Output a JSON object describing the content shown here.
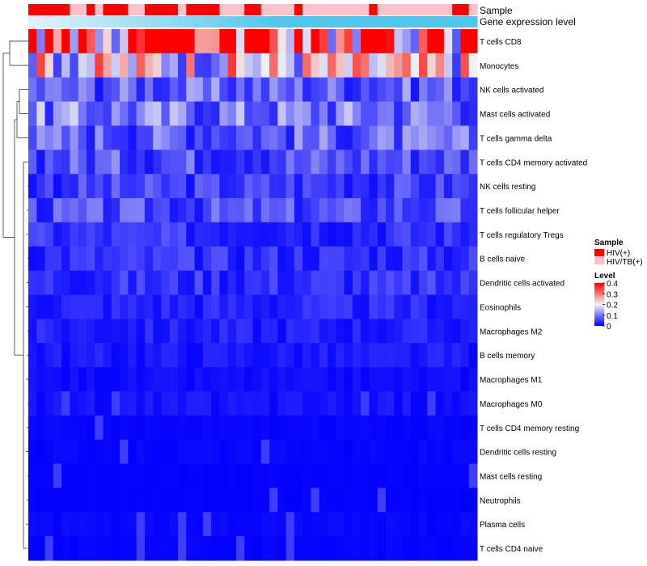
{
  "chart_data": {
    "type": "heatmap",
    "annotations": {
      "sample_label": "Sample",
      "expression_label": "Gene expression level"
    },
    "rows": [
      "T cells CD8",
      "Monocytes",
      "NK cells activated",
      "Mast cells activated",
      "T cells gamma delta",
      "T cells CD4 memory activated",
      "NK cells resting",
      "T cells follicular helper",
      "T cells regulatory  Tregs",
      "B cells naive",
      "Dendritic cells activated",
      "Eosinophils",
      "Macrophages M2",
      "B cells memory",
      "Macrophages M1",
      "Macrophages M0",
      "T cells CD4 memory resting",
      "Dendritic cells resting",
      "Mast cells resting",
      "Neutrophils",
      "Plasma cells",
      "T cells CD4 naive"
    ],
    "row_base_levels": [
      0.33,
      0.2,
      0.08,
      0.1,
      0.08,
      0.07,
      0.05,
      0.06,
      0.04,
      0.04,
      0.04,
      0.03,
      0.025,
      0.02,
      0.01,
      0.015,
      0.005,
      0.005,
      0.003,
      0.002,
      0.006,
      0.004
    ],
    "sample_groups": [
      "HIV(+)",
      "HIV(+)",
      "HIV(+)",
      "HIV(+)",
      "HIV(+)",
      "HIV/TB(+)",
      "HIV/TB(+)",
      "HIV(+)",
      "HIV/TB(+)",
      "HIV(+)",
      "HIV(+)",
      "HIV(+)",
      "HIV/TB(+)",
      "HIV/TB(+)",
      "HIV(+)",
      "HIV(+)",
      "HIV(+)",
      "HIV(+)",
      "HIV/TB(+)",
      "HIV(+)",
      "HIV(+)",
      "HIV(+)",
      "HIV(+)",
      "HIV/TB(+)",
      "HIV/TB(+)",
      "HIV/TB(+)",
      "HIV(+)",
      "HIV(+)",
      "HIV/TB(+)",
      "HIV/TB(+)",
      "HIV/TB(+)",
      "HIV/TB(+)",
      "HIV(+)",
      "HIV/TB(+)",
      "HIV/TB(+)",
      "HIV/TB(+)",
      "HIV/TB(+)",
      "HIV/TB(+)",
      "HIV/TB(+)",
      "HIV/TB(+)",
      "HIV/TB(+)",
      "HIV(+)",
      "HIV/TB(+)",
      "HIV/TB(+)",
      "HIV/TB(+)",
      "HIV/TB(+)",
      "HIV/TB(+)",
      "HIV/TB(+)",
      "HIV/TB(+)",
      "HIV/TB(+)",
      "HIV/TB(+)",
      "HIV(+)",
      "HIV(+)",
      "HIV/TB(+)"
    ],
    "legend": {
      "sample_title": "Sample",
      "sample_entries": [
        {
          "label": "HIV(+)",
          "color": "#ff0000"
        },
        {
          "label": "HIV/TB(+)",
          "color": "#ffc0cb"
        }
      ],
      "level_title": "Level",
      "level_ticks": [
        "0.4",
        "0.3",
        "0.2",
        "0.1",
        "0"
      ],
      "level_range": [
        0,
        0.4
      ],
      "colors": {
        "low": "#0000ff",
        "mid": "#f2f2f2",
        "high": "#ff0000"
      },
      "placement": "right"
    },
    "expression_colors": {
      "light": "#dff2fb",
      "dark": "#4cc8f0"
    }
  }
}
